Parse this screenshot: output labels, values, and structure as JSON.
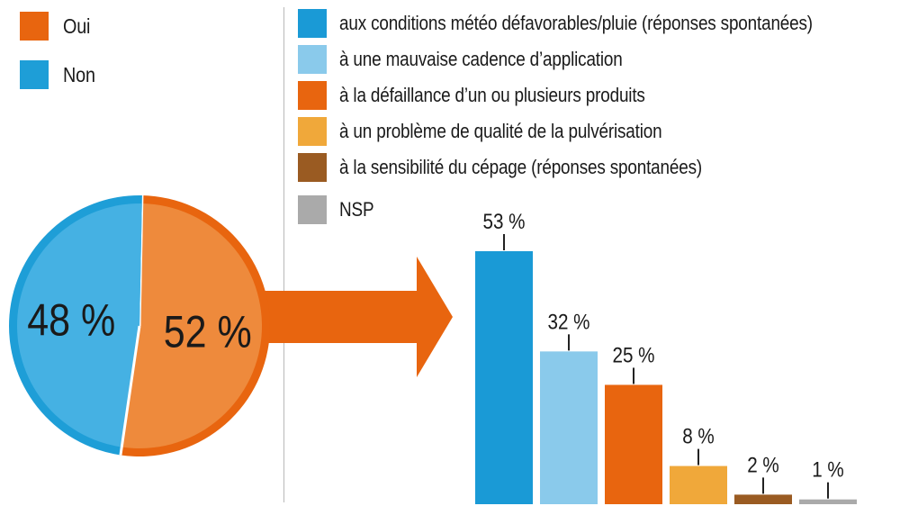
{
  "chart_data": [
    {
      "type": "pie",
      "slices": [
        {
          "name": "Oui",
          "value": 52,
          "label": "52 %",
          "color": "#E8650F",
          "fill": "#EE8A3C"
        },
        {
          "name": "Non",
          "value": 48,
          "label": "48 %",
          "color": "#1E9ED7",
          "fill": "#45B1E3"
        }
      ],
      "legend": {
        "position": "top-left",
        "items": [
          "Oui",
          "Non"
        ]
      }
    },
    {
      "type": "bar",
      "categories": [
        "aux conditions météo défavorables/pluie (réponses spontanées)",
        "à une mauvaise cadence d’application",
        "à la défaillance d’un ou plusieurs produits",
        "à un problème de qualité de la pulvérisation",
        "à la sensibilité du cépage (réponses spontanées)",
        "NSP"
      ],
      "values": [
        53,
        32,
        25,
        8,
        2,
        1
      ],
      "data_labels": [
        "53 %",
        "32 %",
        "25 %",
        "8 %",
        "2 %",
        "1 %"
      ],
      "colors": [
        "#1A9AD6",
        "#8ACAEB",
        "#E8650F",
        "#F0A83A",
        "#9A5B22",
        "#AAAAAA"
      ],
      "unit": "%",
      "ylim": [
        0,
        53
      ],
      "grid": false,
      "legend": {
        "position": "top",
        "items": [
          "aux conditions météo défavorables/pluie (réponses spontanées)",
          "à une mauvaise cadence d’application",
          "à la défaillance d’un ou plusieurs produits",
          "à un problème de qualité de la pulvérisation",
          "à la sensibilité du cépage (réponses spontanées)",
          "NSP"
        ]
      }
    }
  ]
}
